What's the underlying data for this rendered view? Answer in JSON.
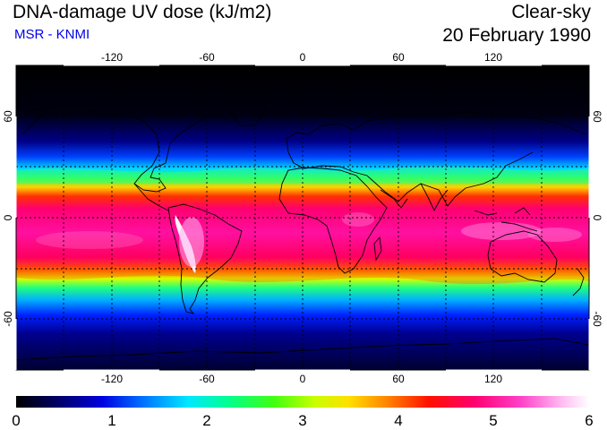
{
  "header": {
    "title": "DNA-damage UV dose (kJ/m2)",
    "subtitle": "MSR - KNMI",
    "condition": "Clear-sky",
    "date": "20 February 1990"
  },
  "map": {
    "lon_ticks": [
      "-120",
      "-60",
      "0",
      "60",
      "120"
    ],
    "lat_ticks": [
      "60",
      "0",
      "-60"
    ],
    "lat_ticks_right": [
      "60",
      "0",
      "-60"
    ],
    "extent": {
      "lon": [
        -180,
        180
      ],
      "lat": [
        -90,
        90
      ]
    },
    "grid_interval_deg": 30
  },
  "colorbar": {
    "ticks": [
      "0",
      "1",
      "2",
      "3",
      "4",
      "5",
      "6"
    ],
    "colors": [
      "#000000",
      "#000060",
      "#0000d8",
      "#0050ff",
      "#00c8ff",
      "#00ffb0",
      "#20ff20",
      "#a8ff00",
      "#ffff00",
      "#ffa000",
      "#ff2000",
      "#ff0060",
      "#ff40c0",
      "#ffb0f0",
      "#ffffff"
    ]
  }
}
